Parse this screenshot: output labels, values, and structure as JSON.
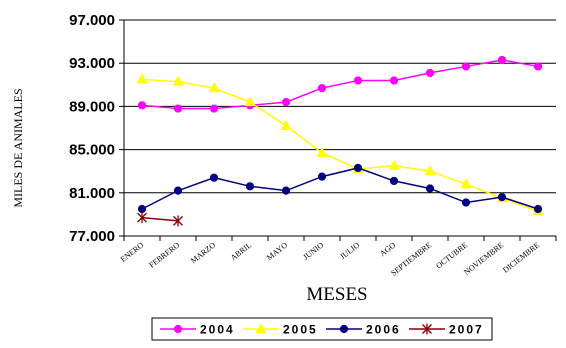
{
  "chart_data": {
    "type": "line",
    "title": "",
    "xlabel": "MESES",
    "ylabel": "MILES DE ANIMALES",
    "ylim": [
      77000,
      97000
    ],
    "yticks": [
      77000,
      81000,
      85000,
      89000,
      93000,
      97000
    ],
    "ytick_labels": [
      "77.000",
      "81.000",
      "85.000",
      "89.000",
      "93.000",
      "97.000"
    ],
    "grid": "horizontal",
    "legend_position": "bottom",
    "categories": [
      "ENERO",
      "FEBRERO",
      "MARZO",
      "ABRIL",
      "MAYO",
      "JUNIO",
      "JULIO",
      "AGO",
      "SEPTIEMBRE",
      "OCTUBRE",
      "NOVIEMBRE",
      "DICIEMBRE"
    ],
    "series": [
      {
        "name": "2004",
        "color": "#ff00ff",
        "marker": "circle",
        "values": [
          89100,
          88800,
          88800,
          89100,
          89400,
          90700,
          91400,
          91400,
          92100,
          92700,
          93300,
          92700
        ]
      },
      {
        "name": "2005",
        "color": "#ffff00",
        "marker": "triangle",
        "values": [
          91500,
          91300,
          90700,
          89400,
          87200,
          84700,
          83200,
          83500,
          83000,
          81800,
          80500,
          79300
        ]
      },
      {
        "name": "2006",
        "color": "#000080",
        "marker": "circle",
        "values": [
          79500,
          81200,
          82400,
          81600,
          81200,
          82500,
          83300,
          82100,
          81400,
          80100,
          80600,
          79500
        ]
      },
      {
        "name": "2007",
        "color": "#8b0000",
        "marker": "star",
        "values": [
          78700,
          78400,
          null,
          null,
          null,
          null,
          null,
          null,
          null,
          null,
          null,
          null
        ]
      }
    ]
  }
}
